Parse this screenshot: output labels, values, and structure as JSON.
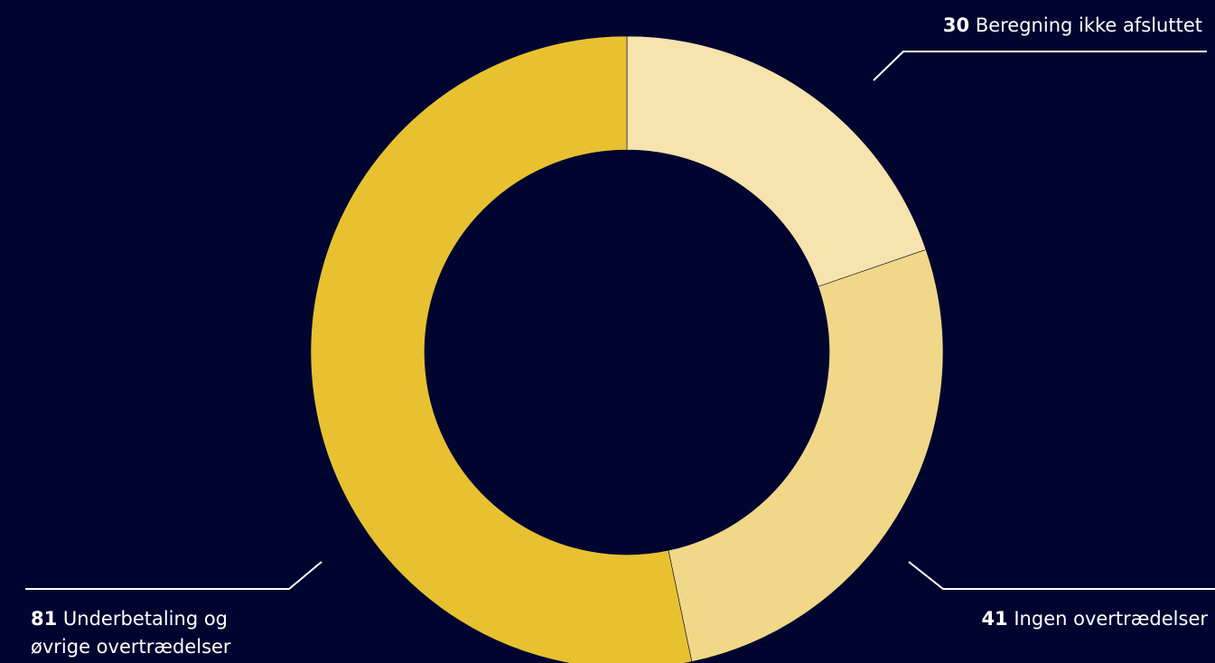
{
  "chart_data": {
    "type": "pie",
    "donut": true,
    "categories": [
      "Beregning ikke afsluttet",
      "Ingen overtrædelser",
      "Underbetaling og øvrige overtrædelser"
    ],
    "values": [
      30,
      41,
      81
    ],
    "colors": [
      "#f6e3ad",
      "#f0d888",
      "#e8c130"
    ],
    "background": "#000530",
    "legend": "none",
    "labels": [
      {
        "value": "30",
        "text": "Beregning ikke afsluttet"
      },
      {
        "value": "41",
        "text": "Ingen overtrædelser"
      },
      {
        "value": "81",
        "text_line1": "Underbetaling og",
        "text_line2": "øvrige overtrædelser"
      }
    ]
  }
}
